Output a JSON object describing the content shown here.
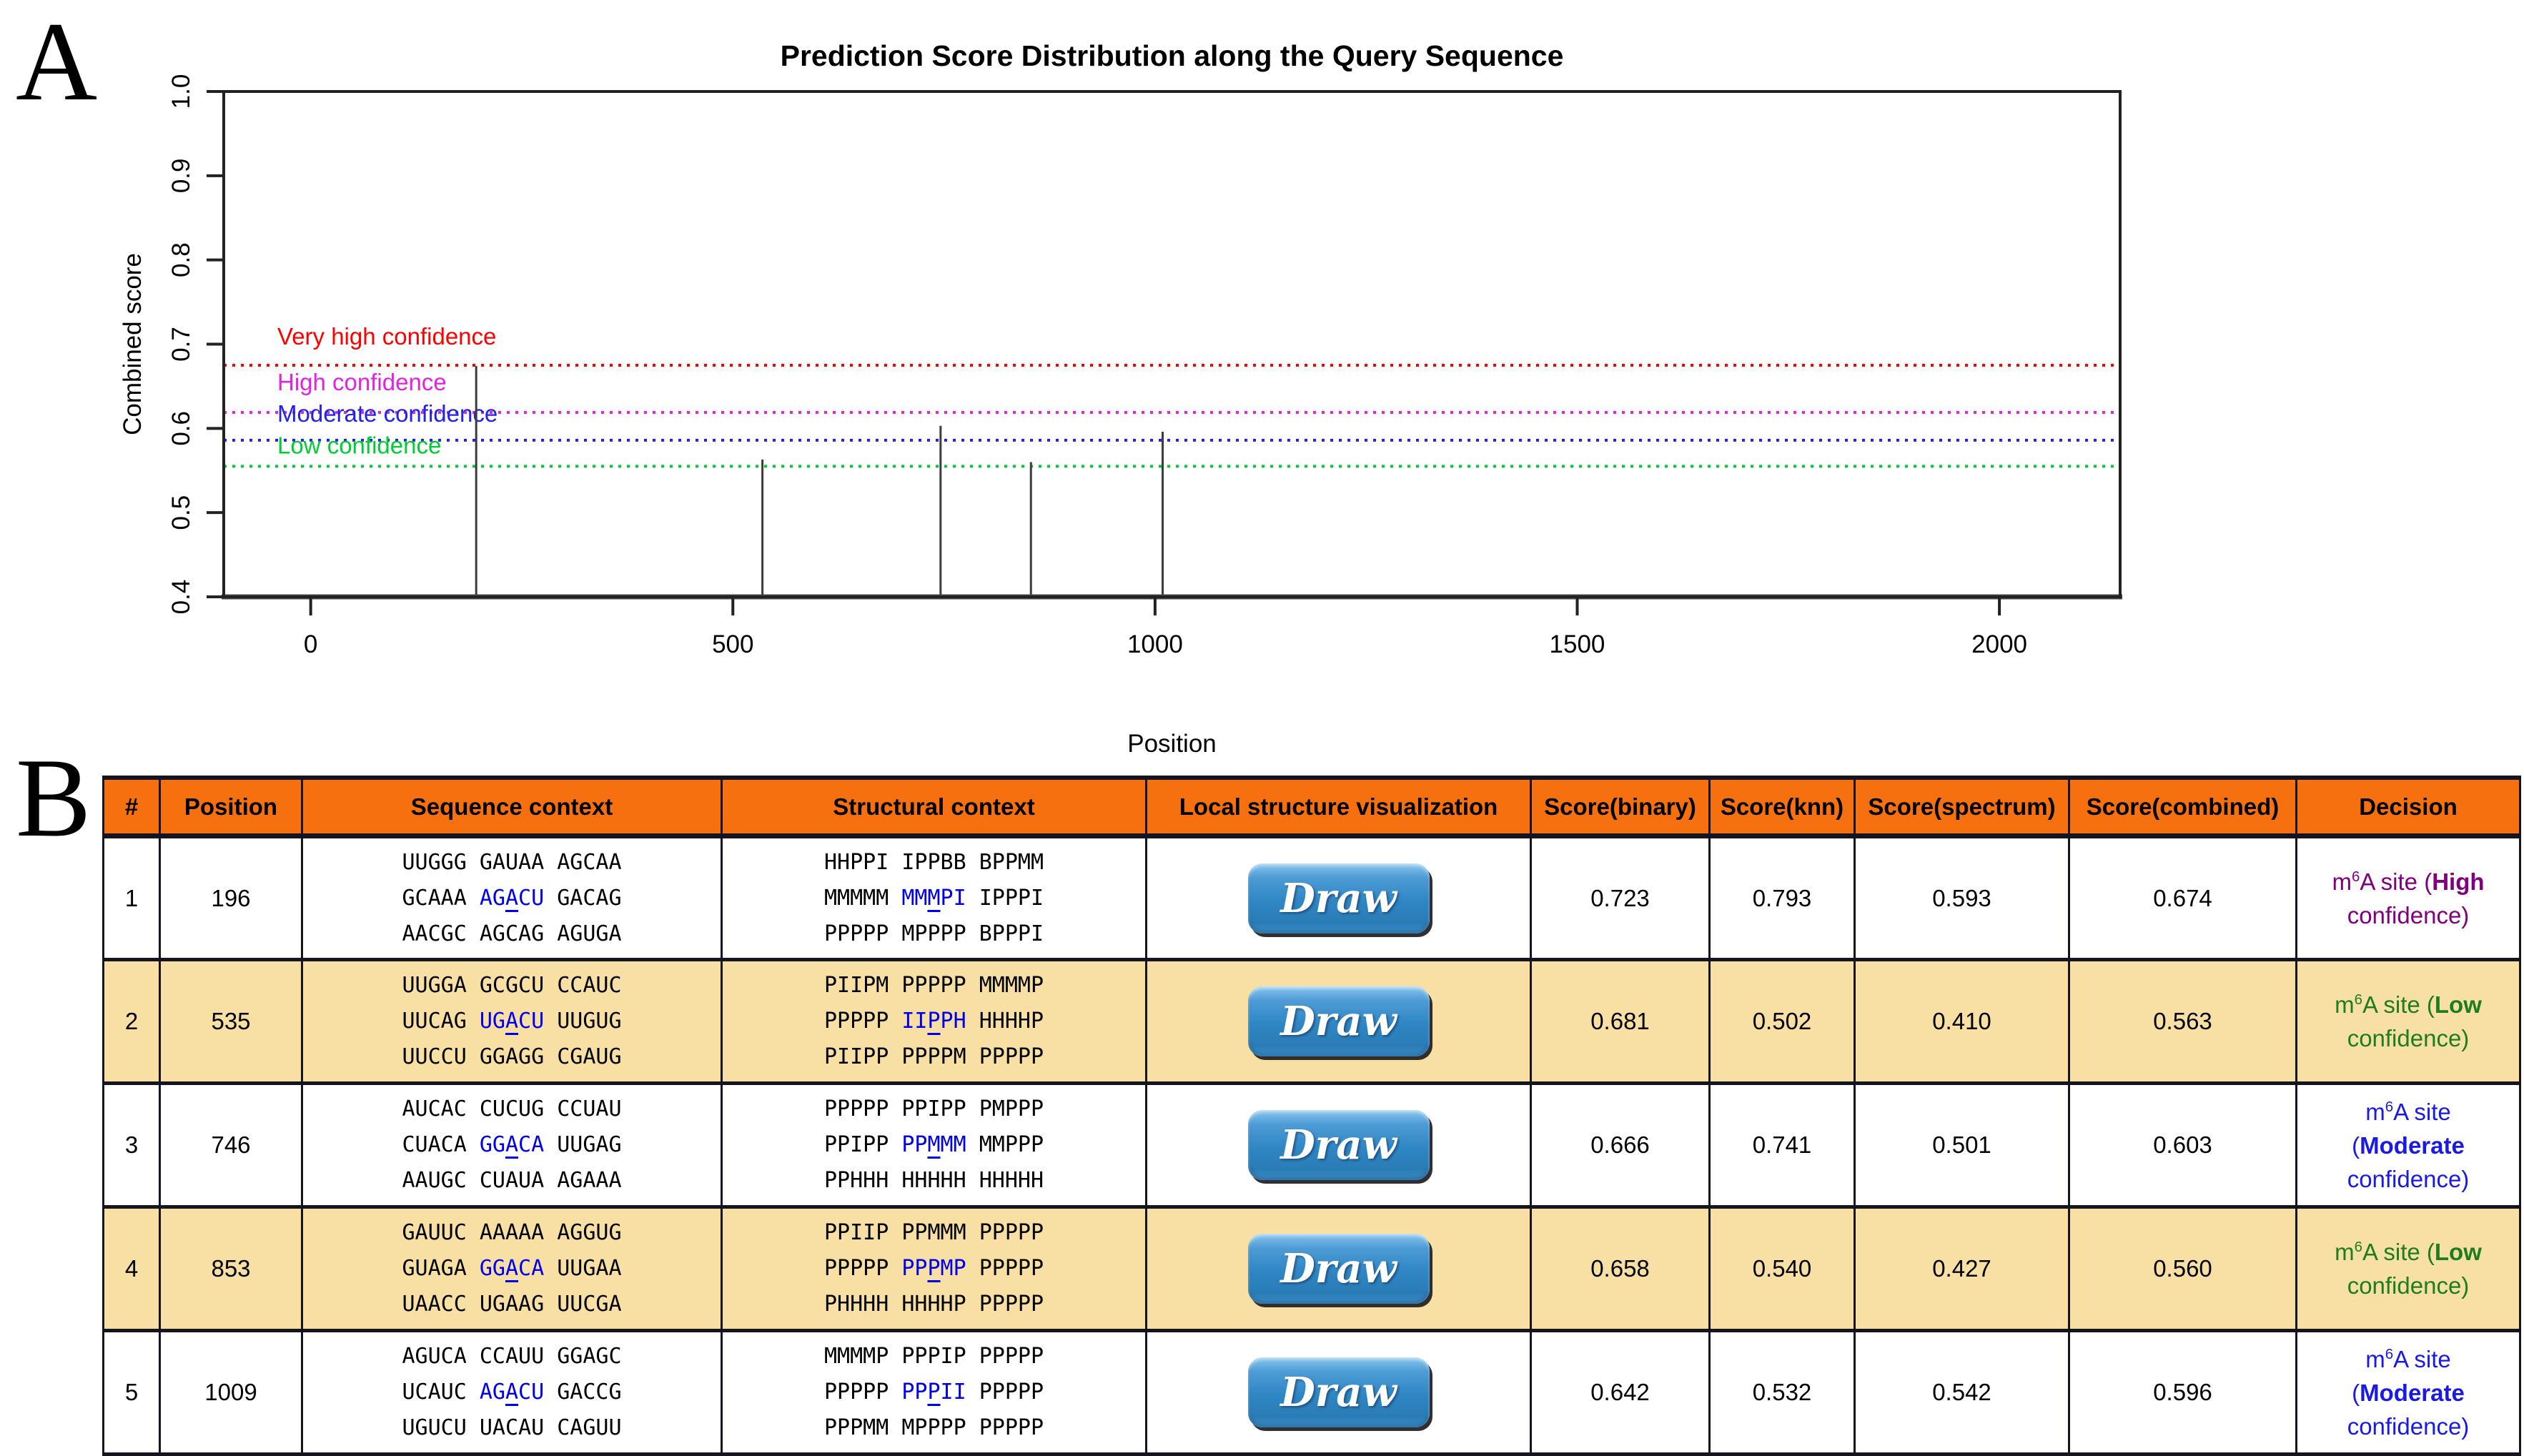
{
  "panel_labels": {
    "a": "A",
    "b": "B"
  },
  "colors": {
    "header_bg": "#F7700F",
    "stripe_bg": "#F8E0A5",
    "table_border": "#15151F",
    "highlight_blue": "#0000EE",
    "decision_purple": "#800080",
    "decision_green": "#1E7D1E",
    "decision_blue": "#1A1AE6",
    "button_blue": "#2E86C3",
    "spike_color": "#3C3C3C"
  },
  "chart_data": {
    "type": "stem",
    "title": "Prediction Score Distribution along the Query Sequence",
    "xlabel": "Position",
    "ylabel": "Combined score",
    "xlim": [
      -103,
      2143
    ],
    "ylim": [
      0.4,
      1.0
    ],
    "xticks": [
      0,
      500,
      1000,
      1500,
      2000
    ],
    "yticks": [
      0.4,
      0.5,
      0.6,
      0.7,
      0.8,
      0.9,
      1.0
    ],
    "grid": false,
    "legend": "none",
    "series": [
      {
        "name": "combined-score-spikes",
        "x": [
          196,
          535,
          746,
          853,
          1009
        ],
        "y": [
          0.674,
          0.563,
          0.603,
          0.56,
          0.596
        ]
      }
    ],
    "thresholds": [
      {
        "label": "Very high confidence",
        "value": 0.675,
        "color": "#FF0000"
      },
      {
        "label": "High confidence",
        "value": 0.619,
        "color": "#E322E3"
      },
      {
        "label": "Moderate confidence",
        "value": 0.586,
        "color": "#2222E8"
      },
      {
        "label": "Low confidence",
        "value": 0.555,
        "color": "#00CC33"
      }
    ]
  },
  "table": {
    "headers": [
      "#",
      "Position",
      "Sequence context",
      "Structural context",
      "Local structure visualization",
      "Score(binary)",
      "Score(knn)",
      "Score(spectrum)",
      "Score(combined)",
      "Decision"
    ],
    "draw_button_label": "Draw",
    "rows": [
      {
        "index": "1",
        "position": "196",
        "striped": false,
        "sequence": {
          "lines": [
            "UUGGG GAUAA AGCAA",
            "GCAAA AGACU GACAG",
            "AACGC AGCAG AGUGA"
          ],
          "hl_line": 1,
          "hl_start": 6,
          "hl_len": 5,
          "ul_offset": 2
        },
        "structure": {
          "lines": [
            "HHPPI IPPBB BPPMM",
            "MMMMM MMMPI IPPPI",
            "PPPPP MPPPP BPPPI"
          ],
          "hl_line": 1,
          "hl_start": 6,
          "hl_len": 5,
          "ul_offset": 2
        },
        "scores": {
          "binary": "0.723",
          "knn": "0.793",
          "spectrum": "0.593",
          "combined": "0.674"
        },
        "decision": {
          "color": "#800080",
          "lines": [
            [
              {
                "t": "m"
              },
              {
                "sup": "6"
              },
              {
                "t": "A site ("
              },
              {
                "b": "High"
              }
            ],
            [
              {
                "t": "confidence)"
              }
            ]
          ]
        }
      },
      {
        "index": "2",
        "position": "535",
        "striped": true,
        "sequence": {
          "lines": [
            "UUGGA GCGCU CCAUC",
            "UUCAG UGACU UUGUG",
            "UUCCU GGAGG CGAUG"
          ],
          "hl_line": 1,
          "hl_start": 6,
          "hl_len": 5,
          "ul_offset": 2
        },
        "structure": {
          "lines": [
            "PIIPM PPPPP MMMMP",
            "PPPPP IIPPH HHHHP",
            "PIIPP PPPPM PPPPP"
          ],
          "hl_line": 1,
          "hl_start": 6,
          "hl_len": 5,
          "ul_offset": 2
        },
        "scores": {
          "binary": "0.681",
          "knn": "0.502",
          "spectrum": "0.410",
          "combined": "0.563"
        },
        "decision": {
          "color": "#1E7D1E",
          "lines": [
            [
              {
                "t": "m"
              },
              {
                "sup": "6"
              },
              {
                "t": "A site ("
              },
              {
                "b": "Low"
              }
            ],
            [
              {
                "t": "confidence)"
              }
            ]
          ]
        }
      },
      {
        "index": "3",
        "position": "746",
        "striped": false,
        "sequence": {
          "lines": [
            "AUCAC CUCUG CCUAU",
            "CUACA GGACA UUGAG",
            "AAUGC CUAUA AGAAA"
          ],
          "hl_line": 1,
          "hl_start": 6,
          "hl_len": 5,
          "ul_offset": 2
        },
        "structure": {
          "lines": [
            "PPPPP PPIPP PMPPP",
            "PPIPP PPMMM MMPPP",
            "PPHHH HHHHH HHHHH"
          ],
          "hl_line": 1,
          "hl_start": 6,
          "hl_len": 5,
          "ul_offset": 2
        },
        "scores": {
          "binary": "0.666",
          "knn": "0.741",
          "spectrum": "0.501",
          "combined": "0.603"
        },
        "decision": {
          "color": "#1A1AE6",
          "lines": [
            [
              {
                "t": "m"
              },
              {
                "sup": "6"
              },
              {
                "t": "A site"
              }
            ],
            [
              {
                "t": "("
              },
              {
                "b": "Moderate"
              }
            ],
            [
              {
                "t": "confidence)"
              }
            ]
          ]
        }
      },
      {
        "index": "4",
        "position": "853",
        "striped": true,
        "sequence": {
          "lines": [
            "GAUUC AAAAA AGGUG",
            "GUAGA GGACA UUGAA",
            "UAACC UGAAG UUCGA"
          ],
          "hl_line": 1,
          "hl_start": 6,
          "hl_len": 5,
          "ul_offset": 2
        },
        "structure": {
          "lines": [
            "PPIIP PPMMM PPPPP",
            "PPPPP PPPMP PPPPP",
            "PHHHH HHHHP PPPPP"
          ],
          "hl_line": 1,
          "hl_start": 6,
          "hl_len": 5,
          "ul_offset": 2
        },
        "scores": {
          "binary": "0.658",
          "knn": "0.540",
          "spectrum": "0.427",
          "combined": "0.560"
        },
        "decision": {
          "color": "#1E7D1E",
          "lines": [
            [
              {
                "t": "m"
              },
              {
                "sup": "6"
              },
              {
                "t": "A site ("
              },
              {
                "b": "Low"
              }
            ],
            [
              {
                "t": "confidence)"
              }
            ]
          ]
        }
      },
      {
        "index": "5",
        "position": "1009",
        "striped": false,
        "sequence": {
          "lines": [
            "AGUCA CCAUU GGAGC",
            "UCAUC AGACU GACCG",
            "UGUCU UACAU CAGUU"
          ],
          "hl_line": 1,
          "hl_start": 6,
          "hl_len": 5,
          "ul_offset": 2
        },
        "structure": {
          "lines": [
            "MMMMP PPPIP PPPPP",
            "PPPPP PPPII PPPPP",
            "PPPMM MPPPP PPPPP"
          ],
          "hl_line": 1,
          "hl_start": 6,
          "hl_len": 5,
          "ul_offset": 2
        },
        "scores": {
          "binary": "0.642",
          "knn": "0.532",
          "spectrum": "0.542",
          "combined": "0.596"
        },
        "decision": {
          "color": "#1A1AE6",
          "lines": [
            [
              {
                "t": "m"
              },
              {
                "sup": "6"
              },
              {
                "t": "A site"
              }
            ],
            [
              {
                "t": "("
              },
              {
                "b": "Moderate"
              }
            ],
            [
              {
                "t": "confidence)"
              }
            ]
          ]
        }
      }
    ]
  }
}
